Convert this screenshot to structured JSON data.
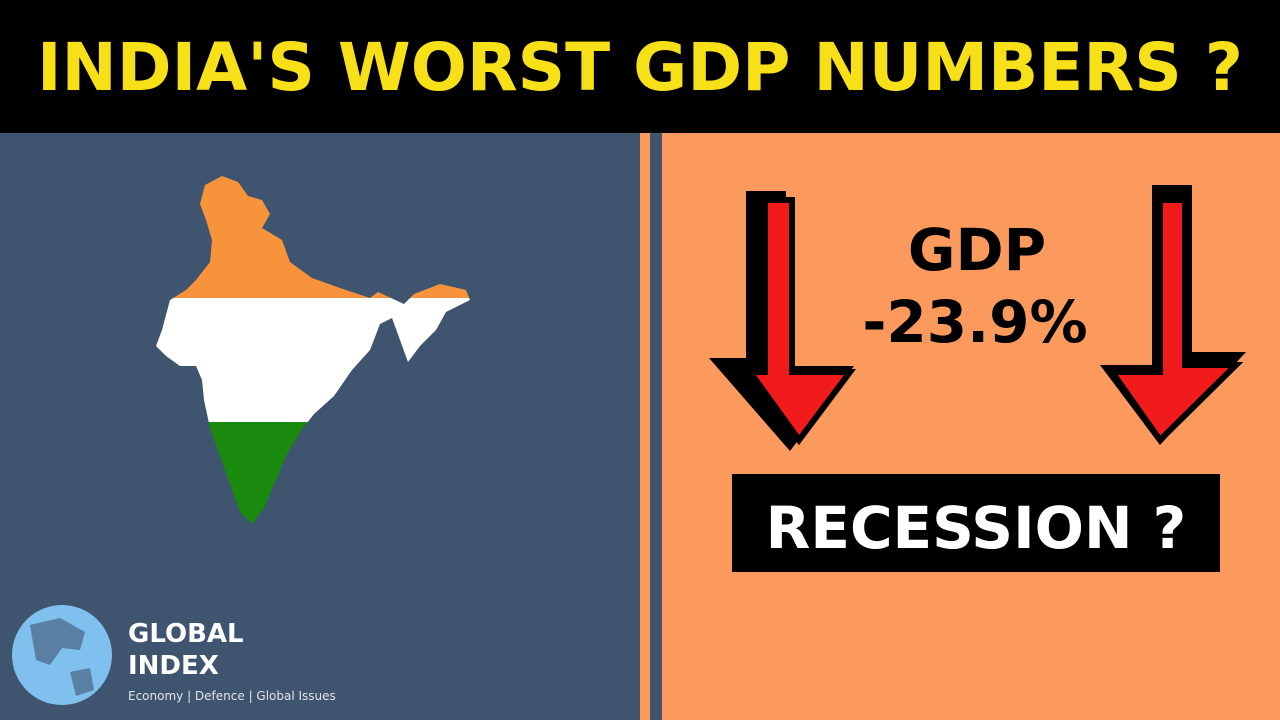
{
  "header": {
    "title": "INDIA'S WORST GDP NUMBERS ?"
  },
  "panel": {
    "label": "GDP",
    "value": "-23.9%",
    "question": "RECESSION ?"
  },
  "logo": {
    "line1": "GLOBAL",
    "line2": "INDEX",
    "tagline": "Economy | Defence | Global Issues"
  }
}
